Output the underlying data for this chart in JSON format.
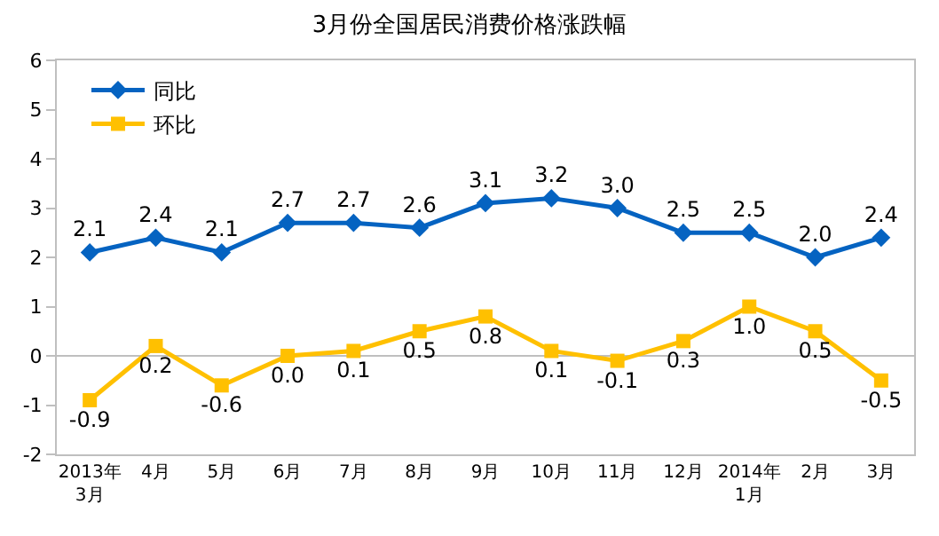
{
  "chart_data": {
    "type": "line",
    "title": "3月份全国居民消费价格涨跌幅",
    "categories": [
      "2013年\n3月",
      "4月",
      "5月",
      "6月",
      "7月",
      "8月",
      "9月",
      "10月",
      "11月",
      "12月",
      "2014年\n1月",
      "2月",
      "3月"
    ],
    "series": [
      {
        "name": "同比",
        "color": "#0563c1",
        "marker": "diamond",
        "values": [
          2.1,
          2.4,
          2.1,
          2.7,
          2.7,
          2.6,
          3.1,
          3.2,
          3.0,
          2.5,
          2.5,
          2.0,
          2.4
        ],
        "value_labels": [
          "2.1",
          "2.4",
          "2.1",
          "2.7",
          "2.7",
          "2.6",
          "3.1",
          "3.2",
          "3.0",
          "2.5",
          "2.5",
          "2.0",
          "2.4"
        ]
      },
      {
        "name": "环比",
        "color": "#ffc000",
        "marker": "square",
        "values": [
          -0.9,
          0.2,
          -0.6,
          0.0,
          0.1,
          0.5,
          0.8,
          0.1,
          -0.1,
          0.3,
          1.0,
          0.5,
          -0.5
        ],
        "value_labels": [
          "-0.9",
          "0.2",
          "-0.6",
          "0.0",
          "0.1",
          "0.5",
          "0.8",
          "0.1",
          "-0.1",
          "0.3",
          "1.0",
          "0.5",
          "-0.5"
        ]
      }
    ],
    "ylim": [
      -2,
      6
    ],
    "yticks": [
      -2,
      -1,
      0,
      1,
      2,
      3,
      4,
      5,
      6
    ],
    "ref_lines": [
      {
        "axis": "y",
        "value": 0,
        "color": "#bfbfbf"
      }
    ],
    "legend": "top left",
    "line_style": "solid"
  }
}
